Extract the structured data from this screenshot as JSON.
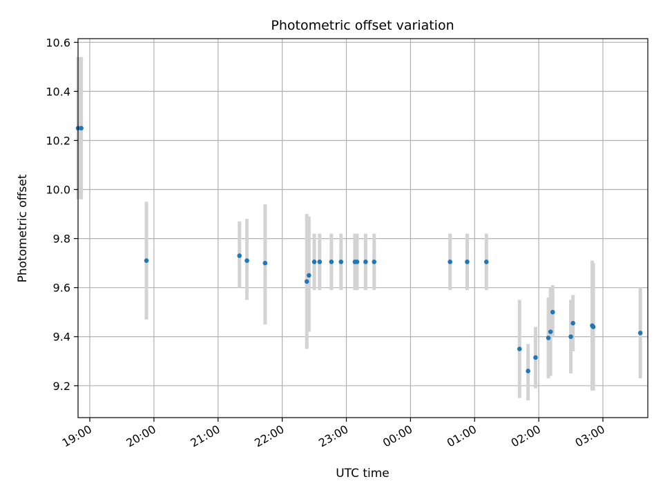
{
  "chart_data": {
    "type": "scatter",
    "title": "Photometric offset variation",
    "xlabel": "UTC time",
    "ylabel": "Photometric offset",
    "xlim": [
      "18:49",
      "03:42"
    ],
    "ylim": [
      9.07,
      10.615
    ],
    "x_ticks": [
      "19:00",
      "20:00",
      "21:00",
      "22:00",
      "23:00",
      "00:00",
      "01:00",
      "02:00",
      "03:00"
    ],
    "y_ticks": [
      9.2,
      9.4,
      9.6,
      9.8,
      10.0,
      10.2,
      10.4,
      10.6
    ],
    "grid": true,
    "points": [
      {
        "t": "18:49",
        "y": 10.25,
        "lo": 9.96,
        "hi": 10.54
      },
      {
        "t": "18:52",
        "y": 10.25,
        "lo": 9.96,
        "hi": 10.54
      },
      {
        "t": "19:53",
        "y": 9.71,
        "lo": 9.47,
        "hi": 9.95
      },
      {
        "t": "21:20",
        "y": 9.73,
        "lo": 9.6,
        "hi": 9.87
      },
      {
        "t": "21:27",
        "y": 9.71,
        "lo": 9.55,
        "hi": 9.88
      },
      {
        "t": "21:44",
        "y": 9.7,
        "lo": 9.45,
        "hi": 9.94
      },
      {
        "t": "22:23",
        "y": 9.625,
        "lo": 9.35,
        "hi": 9.9
      },
      {
        "t": "22:25",
        "y": 9.65,
        "lo": 9.42,
        "hi": 9.89
      },
      {
        "t": "22:30",
        "y": 9.705,
        "lo": 9.59,
        "hi": 9.82
      },
      {
        "t": "22:35",
        "y": 9.705,
        "lo": 9.59,
        "hi": 9.82
      },
      {
        "t": "22:46",
        "y": 9.705,
        "lo": 9.59,
        "hi": 9.82
      },
      {
        "t": "22:55",
        "y": 9.705,
        "lo": 9.59,
        "hi": 9.82
      },
      {
        "t": "23:08",
        "y": 9.705,
        "lo": 9.59,
        "hi": 9.82
      },
      {
        "t": "23:10",
        "y": 9.705,
        "lo": 9.59,
        "hi": 9.82
      },
      {
        "t": "23:18",
        "y": 9.705,
        "lo": 9.59,
        "hi": 9.82
      },
      {
        "t": "23:26",
        "y": 9.705,
        "lo": 9.59,
        "hi": 9.82
      },
      {
        "t": "00:37",
        "y": 9.705,
        "lo": 9.59,
        "hi": 9.82
      },
      {
        "t": "00:53",
        "y": 9.705,
        "lo": 9.59,
        "hi": 9.82
      },
      {
        "t": "01:11",
        "y": 9.705,
        "lo": 9.59,
        "hi": 9.82
      },
      {
        "t": "01:42",
        "y": 9.35,
        "lo": 9.15,
        "hi": 9.55
      },
      {
        "t": "01:50",
        "y": 9.26,
        "lo": 9.14,
        "hi": 9.37
      },
      {
        "t": "01:57",
        "y": 9.315,
        "lo": 9.19,
        "hi": 9.44
      },
      {
        "t": "02:09",
        "y": 9.395,
        "lo": 9.23,
        "hi": 9.56
      },
      {
        "t": "02:11",
        "y": 9.42,
        "lo": 9.24,
        "hi": 9.6
      },
      {
        "t": "02:13",
        "y": 9.5,
        "lo": 9.4,
        "hi": 9.61
      },
      {
        "t": "02:30",
        "y": 9.4,
        "lo": 9.25,
        "hi": 9.55
      },
      {
        "t": "02:32",
        "y": 9.455,
        "lo": 9.34,
        "hi": 9.57
      },
      {
        "t": "02:50",
        "y": 9.445,
        "lo": 9.18,
        "hi": 9.71
      },
      {
        "t": "02:51",
        "y": 9.44,
        "lo": 9.18,
        "hi": 9.7
      },
      {
        "t": "03:35",
        "y": 9.415,
        "lo": 9.23,
        "hi": 9.6
      }
    ],
    "colors": {
      "point": "#1f77b4",
      "errorbar": "#d3d3d3",
      "grid": "#b0b0b0",
      "axes": "#000000"
    }
  }
}
